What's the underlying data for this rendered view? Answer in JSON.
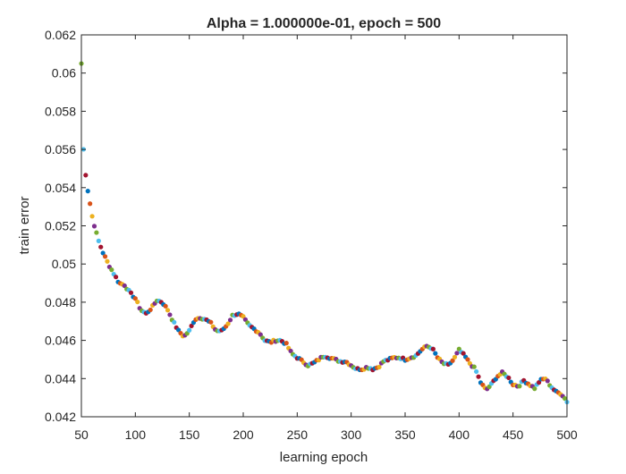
{
  "chart_data": {
    "type": "scatter",
    "title": "Alpha = 1.000000e-01, epoch = 500",
    "xlabel": "learning epoch",
    "ylabel": "train error",
    "xlim": [
      50,
      500
    ],
    "ylim": [
      0.042,
      0.062
    ],
    "xticks": [
      50,
      100,
      150,
      200,
      250,
      300,
      350,
      400,
      450,
      500
    ],
    "xtick_labels": [
      "50",
      "100",
      "150",
      "200",
      "250",
      "300",
      "350",
      "400",
      "450",
      "500"
    ],
    "yticks": [
      0.042,
      0.044,
      0.046,
      0.048,
      0.05,
      0.052,
      0.054,
      0.056,
      0.058,
      0.06,
      0.062
    ],
    "ytick_labels": [
      "0.042",
      "0.044",
      "0.046",
      "0.048",
      "0.05",
      "0.052",
      "0.054",
      "0.056",
      "0.058",
      "0.06",
      "0.062"
    ],
    "grid": false,
    "legend": "none",
    "colors": [
      "#0072BD",
      "#D95319",
      "#EDB120",
      "#7E2F8E",
      "#77AC30",
      "#4DBEEE",
      "#A2142F"
    ],
    "trend": [
      [
        50,
        0.0605
      ],
      [
        51,
        0.0566
      ],
      [
        52,
        0.056
      ],
      [
        53,
        0.0552
      ],
      [
        54,
        0.0547
      ],
      [
        55,
        0.0542
      ],
      [
        57,
        0.0535
      ],
      [
        60,
        0.0525
      ],
      [
        63,
        0.0518
      ],
      [
        66,
        0.0512
      ],
      [
        70,
        0.0506
      ],
      [
        75,
        0.05
      ],
      [
        80,
        0.0495
      ],
      [
        85,
        0.049
      ],
      [
        90,
        0.0489
      ],
      [
        95,
        0.0485
      ],
      [
        100,
        0.0482
      ],
      [
        105,
        0.0476
      ],
      [
        110,
        0.0474
      ],
      [
        115,
        0.0477
      ],
      [
        120,
        0.0481
      ],
      [
        125,
        0.048
      ],
      [
        130,
        0.0476
      ],
      [
        135,
        0.047
      ],
      [
        140,
        0.0465
      ],
      [
        145,
        0.0462
      ],
      [
        150,
        0.0465
      ],
      [
        155,
        0.0471
      ],
      [
        160,
        0.0472
      ],
      [
        165,
        0.0471
      ],
      [
        170,
        0.0469
      ],
      [
        175,
        0.0465
      ],
      [
        180,
        0.0465
      ],
      [
        185,
        0.0468
      ],
      [
        190,
        0.0473
      ],
      [
        195,
        0.0474
      ],
      [
        200,
        0.0472
      ],
      [
        205,
        0.0468
      ],
      [
        210,
        0.0466
      ],
      [
        215,
        0.0464
      ],
      [
        220,
        0.046
      ],
      [
        225,
        0.0459
      ],
      [
        230,
        0.046
      ],
      [
        235,
        0.046
      ],
      [
        240,
        0.0458
      ],
      [
        245,
        0.0453
      ],
      [
        250,
        0.0451
      ],
      [
        255,
        0.0449
      ],
      [
        260,
        0.0447
      ],
      [
        265,
        0.0448
      ],
      [
        270,
        0.045
      ],
      [
        275,
        0.0452
      ],
      [
        280,
        0.0451
      ],
      [
        285,
        0.045
      ],
      [
        290,
        0.0449
      ],
      [
        295,
        0.0449
      ],
      [
        300,
        0.0447
      ],
      [
        305,
        0.0445
      ],
      [
        310,
        0.0445
      ],
      [
        315,
        0.0446
      ],
      [
        320,
        0.0445
      ],
      [
        325,
        0.0446
      ],
      [
        330,
        0.0449
      ],
      [
        335,
        0.045
      ],
      [
        340,
        0.0451
      ],
      [
        345,
        0.0451
      ],
      [
        350,
        0.045
      ],
      [
        355,
        0.0451
      ],
      [
        360,
        0.0452
      ],
      [
        365,
        0.0455
      ],
      [
        370,
        0.0457
      ],
      [
        375,
        0.0456
      ],
      [
        380,
        0.0451
      ],
      [
        385,
        0.0448
      ],
      [
        390,
        0.0447
      ],
      [
        395,
        0.045
      ],
      [
        400,
        0.0455
      ],
      [
        405,
        0.0452
      ],
      [
        410,
        0.0448
      ],
      [
        415,
        0.0445
      ],
      [
        420,
        0.0438
      ],
      [
        425,
        0.0434
      ],
      [
        430,
        0.0437
      ],
      [
        435,
        0.0441
      ],
      [
        440,
        0.0443
      ],
      [
        445,
        0.0441
      ],
      [
        450,
        0.0437
      ],
      [
        455,
        0.0436
      ],
      [
        460,
        0.0439
      ],
      [
        465,
        0.0437
      ],
      [
        470,
        0.0435
      ],
      [
        475,
        0.0439
      ],
      [
        480,
        0.044
      ],
      [
        485,
        0.0436
      ],
      [
        490,
        0.0433
      ],
      [
        495,
        0.0432
      ],
      [
        500,
        0.0428
      ]
    ]
  }
}
